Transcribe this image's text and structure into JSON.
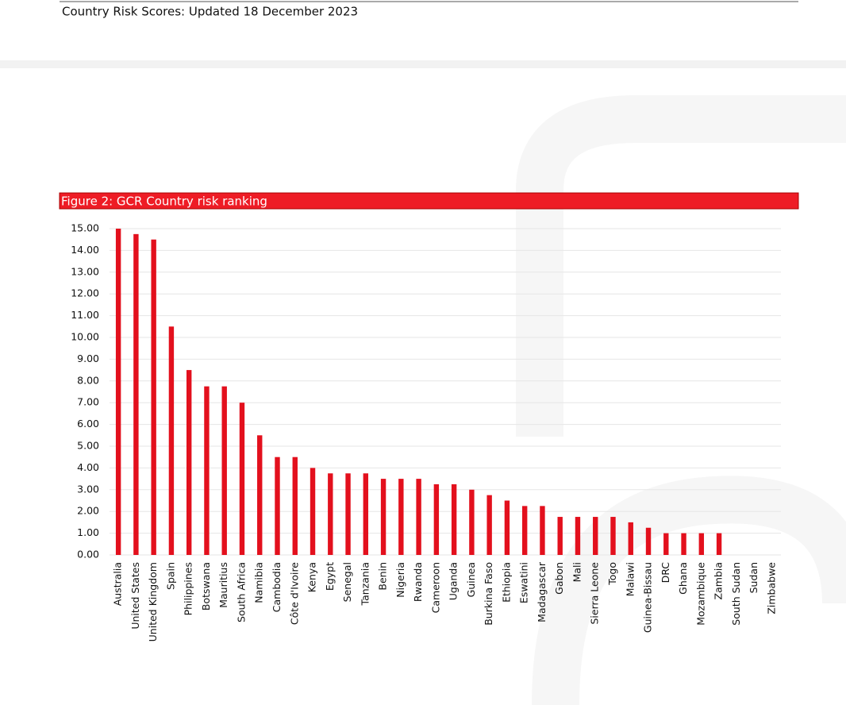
{
  "header": {
    "text": "Country Risk Scores: Updated 18 December 2023"
  },
  "chart_data": {
    "type": "bar",
    "title": "Figure 2: GCR Country risk ranking",
    "categories": [
      "Australia",
      "United States",
      "United Kingdom",
      "Spain",
      "Philippines",
      "Botswana",
      "Mauritius",
      "South Africa",
      "Namibia",
      "Cambodia",
      "Côte d'Ivoire",
      "Kenya",
      "Egypt",
      "Senegal",
      "Tanzania",
      "Benin",
      "Nigeria",
      "Rwanda",
      "Cameroon",
      "Uganda",
      "Guinea",
      "Burkina Faso",
      "Ethiopia",
      "Eswatini",
      "Madagascar",
      "Gabon",
      "Mali",
      "Sierra Leone",
      "Togo",
      "Malawi",
      "Guinea-Bissau",
      "DRC",
      "Ghana",
      "Mozambique",
      "Zambia",
      "South Sudan",
      "Sudan",
      "Zimbabwe"
    ],
    "values": [
      15,
      14.75,
      14.5,
      10.5,
      8.5,
      7.75,
      7.75,
      7,
      5.5,
      4.5,
      4.5,
      4,
      3.75,
      3.75,
      3.75,
      3.5,
      3.5,
      3.5,
      3.25,
      3.25,
      3,
      2.75,
      2.5,
      2.25,
      2.25,
      1.75,
      1.75,
      1.75,
      1.75,
      1.5,
      1.25,
      1,
      1,
      1,
      1,
      0,
      0,
      0
    ],
    "color": "#e3101d",
    "ylim": [
      0,
      15
    ],
    "yticks": [
      {
        "value": 0,
        "label": "0.00"
      },
      {
        "value": 1,
        "label": "1.00"
      },
      {
        "value": 2,
        "label": "2.00"
      },
      {
        "value": 3,
        "label": "3.00"
      },
      {
        "value": 4,
        "label": "4.00"
      },
      {
        "value": 5,
        "label": "5.00"
      },
      {
        "value": 6,
        "label": "6.00"
      },
      {
        "value": 7,
        "label": "7.00"
      },
      {
        "value": 8,
        "label": "8.00"
      },
      {
        "value": 9,
        "label": "9.00"
      },
      {
        "value": 10,
        "label": "10.00"
      },
      {
        "value": 11,
        "label": "11.00"
      },
      {
        "value": 12,
        "label": "12.00"
      },
      {
        "value": 13,
        "label": "13.00"
      },
      {
        "value": 14,
        "label": "14.00"
      },
      {
        "value": 15,
        "label": "15.00"
      }
    ],
    "grid": true
  }
}
